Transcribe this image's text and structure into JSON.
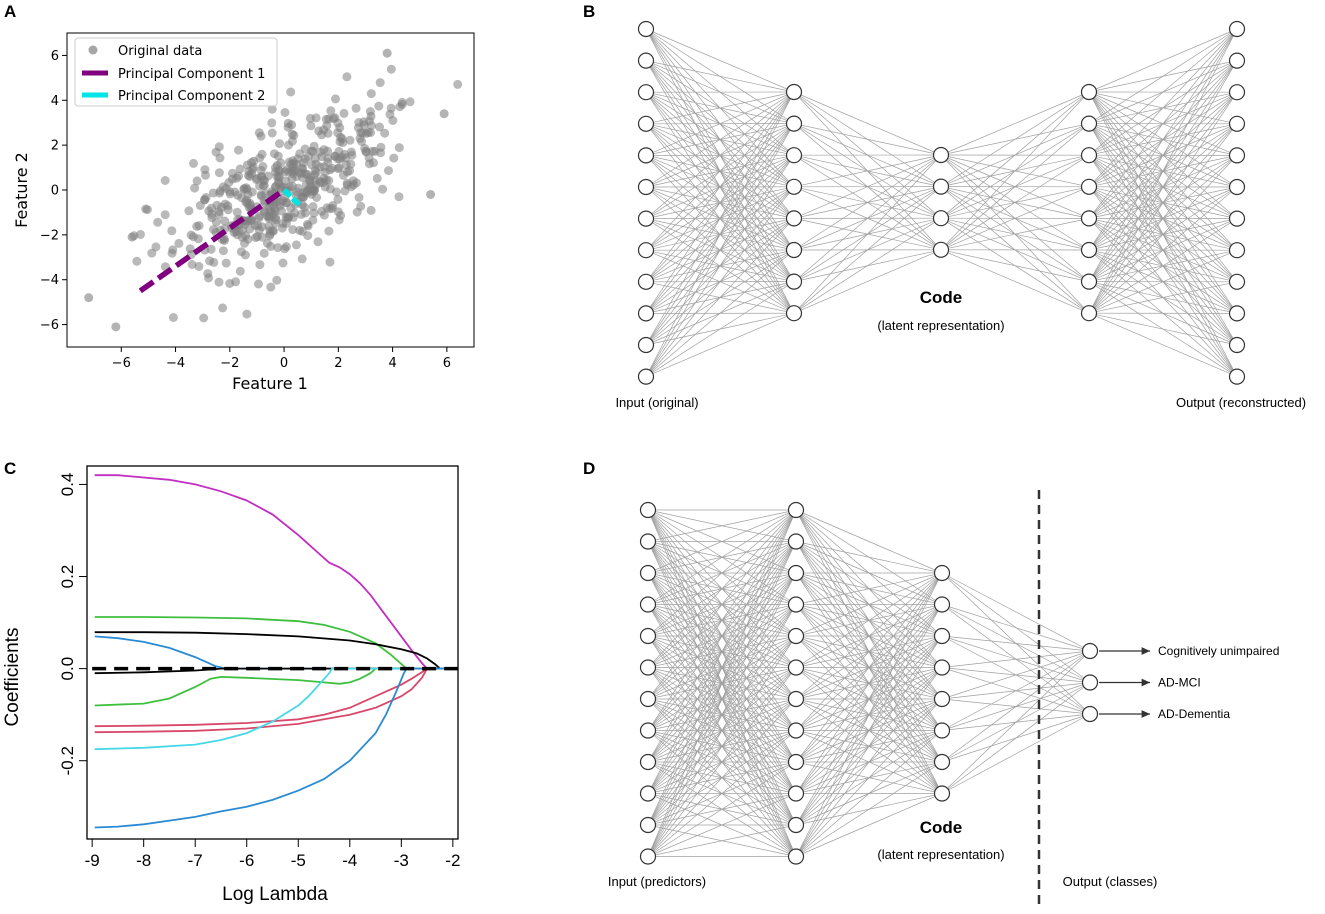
{
  "panels": {
    "A": "A",
    "B": "B",
    "C": "C",
    "D": "D"
  },
  "chart_data": [
    {
      "id": "A",
      "type": "scatter",
      "title": "",
      "xlabel": "Feature 1",
      "ylabel": "Feature 2",
      "xlim": [
        -8,
        7
      ],
      "ylim": [
        -7,
        7
      ],
      "xticks": [
        -6,
        -4,
        -2,
        0,
        2,
        4,
        6
      ],
      "yticks": [
        -6,
        -4,
        -2,
        0,
        2,
        4,
        6
      ],
      "xtick_labels": [
        "−6",
        "−4",
        "−2",
        "0",
        "2",
        "4",
        "6"
      ],
      "ytick_labels": [
        "−6",
        "−4",
        "−2",
        "0",
        "2",
        "4",
        "6"
      ],
      "legend": [
        "Original data",
        "Principal Component 1",
        "Principal Component 2"
      ],
      "legend_position": "top-left",
      "colors": {
        "points": "#808080",
        "pc1": "#800080",
        "pc2": "#00e5e5"
      },
      "point_count": 480,
      "point_distribution": {
        "mean": [
          0,
          0
        ],
        "std_x": 2.0,
        "std_y": 1.9,
        "correlation": 0.62
      },
      "outliers": [
        [
          -7.2,
          -4.8
        ],
        [
          -6.2,
          -6.1
        ],
        [
          5.9,
          3.4
        ],
        [
          3.8,
          6.1
        ],
        [
          5.4,
          -0.2
        ],
        [
          -5.6,
          -2.1
        ]
      ],
      "pc1_segment": [
        [
          -5.3,
          -4.5
        ],
        [
          0,
          0
        ]
      ],
      "pc2_segment": [
        [
          0,
          0
        ],
        [
          0.6,
          -0.7
        ]
      ]
    },
    {
      "id": "C",
      "type": "line",
      "title": "",
      "xlabel": "Log Lambda",
      "ylabel": "Coefficients",
      "xlim": [
        -9.1,
        -1.9
      ],
      "ylim": [
        -0.37,
        0.44
      ],
      "xticks": [
        -9,
        -8,
        -7,
        -6,
        -5,
        -4,
        -3,
        -2
      ],
      "yticks": [
        -0.2,
        0.0,
        0.2,
        0.4
      ],
      "ytick_labels": [
        "-0.2",
        "0.0",
        "0.2",
        "0.4"
      ],
      "zero_line": true,
      "series": [
        {
          "name": "magenta",
          "color": "#c22ec2",
          "x": [
            -8.95,
            -8.5,
            -8,
            -7.5,
            -7,
            -6.5,
            -6,
            -5.5,
            -5,
            -4.8,
            -4.6,
            -4.4,
            -4.2,
            -4,
            -3.8,
            -3.6,
            -3.4,
            -3.2,
            -3,
            -2.8,
            -2.6,
            -2.5,
            -2.3,
            -2.0
          ],
          "y": [
            0.42,
            0.42,
            0.415,
            0.41,
            0.4,
            0.385,
            0.365,
            0.335,
            0.29,
            0.27,
            0.25,
            0.23,
            0.22,
            0.205,
            0.185,
            0.16,
            0.13,
            0.1,
            0.07,
            0.04,
            0.012,
            0.0,
            0.0,
            0.0
          ]
        },
        {
          "name": "green-top",
          "color": "#3fbf3f",
          "x": [
            -8.95,
            -8,
            -7,
            -6,
            -5,
            -4.5,
            -4,
            -3.5,
            -3.2,
            -3,
            -2.9,
            -2.0
          ],
          "y": [
            0.112,
            0.112,
            0.111,
            0.109,
            0.103,
            0.095,
            0.08,
            0.055,
            0.03,
            0.01,
            0.0,
            0.0
          ]
        },
        {
          "name": "black",
          "color": "#000000",
          "x": [
            -8.95,
            -8,
            -7,
            -6,
            -5,
            -4,
            -3.5,
            -3,
            -2.7,
            -2.5,
            -2.35,
            -2.25,
            -2.0
          ],
          "y": [
            0.079,
            0.079,
            0.078,
            0.075,
            0.07,
            0.061,
            0.053,
            0.042,
            0.033,
            0.022,
            0.01,
            0.0,
            0.0
          ]
        },
        {
          "name": "blue-top",
          "color": "#2a8ad4",
          "x": [
            -8.95,
            -8.5,
            -8,
            -7.5,
            -7,
            -6.8,
            -6.6,
            -6.4,
            -2.0
          ],
          "y": [
            0.07,
            0.066,
            0.058,
            0.045,
            0.025,
            0.015,
            0.005,
            0.0,
            0.0
          ]
        },
        {
          "name": "black-lower",
          "color": "#000000",
          "x": [
            -8.95,
            -8,
            -7,
            -6.7,
            -6.5,
            -2.0
          ],
          "y": [
            -0.01,
            -0.008,
            -0.004,
            -0.002,
            0.0,
            0.0
          ]
        },
        {
          "name": "green-bottom",
          "color": "#3fbf3f",
          "x": [
            -8.95,
            -8,
            -7.5,
            -7,
            -6.7,
            -6.5,
            -6,
            -5,
            -4.5,
            -4.2,
            -4,
            -3.8,
            -3.6,
            -3.5,
            -2.0
          ],
          "y": [
            -0.08,
            -0.076,
            -0.065,
            -0.04,
            -0.022,
            -0.018,
            -0.02,
            -0.025,
            -0.03,
            -0.033,
            -0.03,
            -0.022,
            -0.01,
            0.0,
            0.0
          ]
        },
        {
          "name": "red-1",
          "color": "#d8486a",
          "x": [
            -8.95,
            -8,
            -7,
            -6,
            -5,
            -4.5,
            -4,
            -3.5,
            -3,
            -2.8,
            -2.6,
            -2.5,
            -2.0
          ],
          "y": [
            -0.125,
            -0.124,
            -0.122,
            -0.118,
            -0.11,
            -0.1,
            -0.085,
            -0.06,
            -0.035,
            -0.022,
            -0.008,
            0.0,
            0.0
          ]
        },
        {
          "name": "red-2",
          "color": "#d8486a",
          "x": [
            -8.95,
            -8,
            -7,
            -6,
            -5,
            -4.5,
            -4,
            -3.5,
            -3,
            -2.8,
            -2.6,
            -2.5,
            -2.0
          ],
          "y": [
            -0.138,
            -0.137,
            -0.135,
            -0.13,
            -0.12,
            -0.11,
            -0.1,
            -0.085,
            -0.06,
            -0.045,
            -0.02,
            0.0,
            0.0
          ]
        },
        {
          "name": "cyan",
          "color": "#45d8e8",
          "x": [
            -8.95,
            -8,
            -7,
            -6.5,
            -6,
            -5.5,
            -5,
            -4.8,
            -4.6,
            -4.4,
            -4.35,
            -2.0
          ],
          "y": [
            -0.175,
            -0.172,
            -0.165,
            -0.155,
            -0.14,
            -0.115,
            -0.08,
            -0.06,
            -0.035,
            -0.01,
            0.0,
            0.0
          ]
        },
        {
          "name": "blue-bottom",
          "color": "#2a8ad4",
          "x": [
            -8.95,
            -8.5,
            -8,
            -7.5,
            -7,
            -6.5,
            -6,
            -5.5,
            -5,
            -4.5,
            -4,
            -3.5,
            -3.3,
            -3.1,
            -2.95,
            -2.9,
            -2.0
          ],
          "y": [
            -0.345,
            -0.343,
            -0.338,
            -0.33,
            -0.322,
            -0.31,
            -0.3,
            -0.285,
            -0.265,
            -0.24,
            -0.2,
            -0.14,
            -0.1,
            -0.05,
            -0.01,
            0.0,
            0.0
          ]
        }
      ]
    }
  ],
  "panel_b": {
    "input_label": "Input (original)",
    "output_label": "Output (reconstructed)",
    "code_title": "Code",
    "code_subtitle": "(latent representation)",
    "layers": [
      12,
      8,
      4,
      8,
      12
    ],
    "node_color": "#ffffff",
    "edge_color": "#a0a0a0"
  },
  "panel_d": {
    "input_label": "Input (predictors)",
    "output_label": "Output (classes)",
    "code_title": "Code",
    "code_subtitle": "(latent representation)",
    "layers": [
      12,
      12,
      8,
      3
    ],
    "classes": [
      "Cognitively unimpaired",
      "AD-MCI",
      "AD-Dementia"
    ],
    "node_color": "#ffffff",
    "edge_color": "#a0a0a0"
  }
}
